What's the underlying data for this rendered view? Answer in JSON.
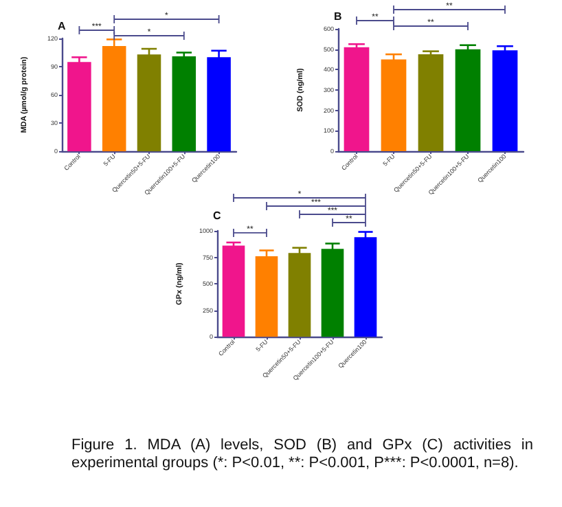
{
  "chart_data": [
    {
      "type": "bar",
      "title": "A",
      "ylabel": "MDA (µmol/g protein)",
      "categories": [
        "Control",
        "5-FU",
        "Quercetin50+5-FU",
        "Quercetin100+5-FU",
        "Quercetin100"
      ],
      "values": [
        95,
        112,
        103,
        101,
        100
      ],
      "errors": [
        5,
        7,
        6,
        4,
        7
      ],
      "colors": [
        "#f0158c",
        "#ff8000",
        "#808000",
        "#008000",
        "#0000ff"
      ],
      "ylim": [
        0,
        120
      ],
      "yticks": [
        0,
        30,
        60,
        90,
        120
      ],
      "grid": false,
      "annotations": [
        "***",
        "*",
        "*"
      ]
    },
    {
      "type": "bar",
      "title": "B",
      "ylabel": "SOD (ng/ml)",
      "categories": [
        "Control",
        "5-FU",
        "Quercetin50+5-FU",
        "Quercetin100+5-FU",
        "Quercetin100"
      ],
      "values": [
        510,
        450,
        475,
        500,
        495
      ],
      "errors": [
        15,
        25,
        15,
        20,
        20
      ],
      "colors": [
        "#f0158c",
        "#ff8000",
        "#808000",
        "#008000",
        "#0000ff"
      ],
      "ylim": [
        0,
        600
      ],
      "yticks": [
        0,
        100,
        200,
        300,
        400,
        500,
        600
      ],
      "grid": false,
      "annotations": [
        "**",
        "**",
        "**"
      ]
    },
    {
      "type": "bar",
      "title": "C",
      "ylabel": "GPx (ng/ml)",
      "categories": [
        "Control",
        "5-FU",
        "Quercetin50+5-FU",
        "Quercetin100+5-FU",
        "Quercetin100"
      ],
      "values": [
        860,
        760,
        790,
        830,
        940
      ],
      "errors": [
        30,
        55,
        50,
        50,
        50
      ],
      "colors": [
        "#f0158c",
        "#ff8000",
        "#808000",
        "#008000",
        "#0000ff"
      ],
      "ylim": [
        0,
        1000
      ],
      "yticks": [
        0,
        250,
        500,
        750,
        1000
      ],
      "grid": false,
      "annotations": [
        "**",
        "**",
        "***",
        "***",
        "*",
        "Figure 1. MDA (A) levels, SOD (B) and GPx (C) activities in experimental groups (*: P<0.01, **: P<0.001, P***: P<0.0001, n=8)."
      ]
    }
  ]
}
